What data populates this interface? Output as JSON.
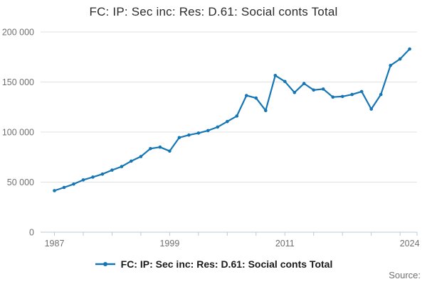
{
  "title": "FC: IP: Sec inc: Res: D.61: Social conts Total",
  "legend": {
    "label": "FC: IP: Sec inc: Res: D.61: Social conts Total"
  },
  "source_label": "Source:",
  "colors": {
    "line": "#1576b5",
    "grid": "#e0e0e0",
    "axis": "#bcc9d4",
    "tick_label": "#6f6f6f",
    "title_text": "#2b2b2b",
    "legend_text": "#1a1a1a",
    "source_text": "#707070"
  },
  "chart_data": {
    "type": "line",
    "title": "FC: IP: Sec inc: Res: D.61: Social conts Total",
    "series_name": "FC: IP: Sec inc: Res: D.61: Social conts Total",
    "x": [
      1987,
      1988,
      1989,
      1990,
      1991,
      1992,
      1993,
      1994,
      1995,
      1996,
      1997,
      1998,
      1999,
      2000,
      2001,
      2002,
      2003,
      2004,
      2005,
      2006,
      2007,
      2008,
      2009,
      2010,
      2011,
      2012,
      2013,
      2014,
      2015,
      2016,
      2017,
      2018,
      2019,
      2020,
      2021,
      2022,
      2023,
      2024
    ],
    "values": [
      41500,
      44700,
      48000,
      52200,
      55000,
      58000,
      62000,
      65500,
      71000,
      75500,
      83500,
      85000,
      81000,
      94500,
      97000,
      99000,
      101500,
      105000,
      110500,
      116000,
      136500,
      134000,
      121500,
      156500,
      150500,
      139500,
      148500,
      142000,
      143000,
      135000,
      135500,
      137500,
      140500,
      123000,
      137500,
      166500,
      173000,
      183000
    ],
    "ylim": [
      0,
      200000
    ],
    "yticks": [
      {
        "value": 200000,
        "label": "200 000"
      },
      {
        "value": 150000,
        "label": "150 000"
      },
      {
        "value": 100000,
        "label": "100 000"
      },
      {
        "value": 50000,
        "label": "50 000"
      },
      {
        "value": 0,
        "label": "0"
      }
    ],
    "xtick_label_years": [
      1987,
      1999,
      2011,
      2024
    ],
    "xtick_minor_step": 3,
    "grid": "horizontal",
    "legend_position": "bottom-center",
    "marker": "circle"
  }
}
